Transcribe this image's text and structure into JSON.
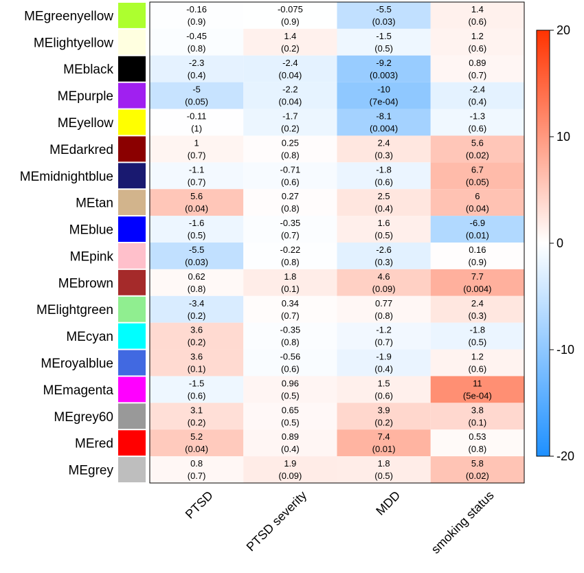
{
  "chart_data": {
    "type": "heatmap",
    "title": "",
    "xlabel": "",
    "ylabel": "",
    "columns": [
      "PTSD",
      "PTSD severity",
      "MDD",
      "smoking status"
    ],
    "rows": [
      {
        "name": "MEgreenyellow",
        "color": "#ADFF2F",
        "values": [
          -0.16,
          -0.075,
          -5.5,
          1.4
        ],
        "labels": [
          "-0.16",
          "-0.075",
          "-5.5",
          "1.4"
        ],
        "pvalues": [
          "(0.9)",
          "(0.9)",
          "(0.03)",
          "(0.6)"
        ]
      },
      {
        "name": "MElightyellow",
        "color": "#FFFFE0",
        "values": [
          -0.45,
          1.4,
          -1.5,
          1.2
        ],
        "labels": [
          "-0.45",
          "1.4",
          "-1.5",
          "1.2"
        ],
        "pvalues": [
          "(0.8)",
          "(0.2)",
          "(0.5)",
          "(0.6)"
        ]
      },
      {
        "name": "MEblack",
        "color": "#000000",
        "values": [
          -2.3,
          -2.4,
          -9.2,
          0.89
        ],
        "labels": [
          "-2.3",
          "-2.4",
          "-9.2",
          "0.89"
        ],
        "pvalues": [
          "(0.4)",
          "(0.04)",
          "(0.003)",
          "(0.7)"
        ]
      },
      {
        "name": "MEpurple",
        "color": "#A020F0",
        "values": [
          -5,
          -2.2,
          -10,
          -2.4
        ],
        "labels": [
          "-5",
          "-2.2",
          "-10",
          "-2.4"
        ],
        "pvalues": [
          "(0.05)",
          "(0.04)",
          "(7e-04)",
          "(0.4)"
        ]
      },
      {
        "name": "MEyellow",
        "color": "#FFFF00",
        "values": [
          -0.11,
          -1.7,
          -8.1,
          -1.3
        ],
        "labels": [
          "-0.11",
          "-1.7",
          "-8.1",
          "-1.3"
        ],
        "pvalues": [
          "(1)",
          "(0.2)",
          "(0.004)",
          "(0.6)"
        ]
      },
      {
        "name": "MEdarkred",
        "color": "#8B0000",
        "values": [
          1,
          0.25,
          2.4,
          5.6
        ],
        "labels": [
          "1",
          "0.25",
          "2.4",
          "5.6"
        ],
        "pvalues": [
          "(0.7)",
          "(0.8)",
          "(0.3)",
          "(0.02)"
        ]
      },
      {
        "name": "MEmidnightblue",
        "color": "#191970",
        "values": [
          -1.1,
          -0.71,
          -1.8,
          6.7
        ],
        "labels": [
          "-1.1",
          "-0.71",
          "-1.8",
          "6.7"
        ],
        "pvalues": [
          "(0.7)",
          "(0.6)",
          "(0.6)",
          "(0.05)"
        ]
      },
      {
        "name": "MEtan",
        "color": "#D2B48C",
        "values": [
          5.6,
          0.27,
          2.5,
          6
        ],
        "labels": [
          "5.6",
          "0.27",
          "2.5",
          "6"
        ],
        "pvalues": [
          "(0.04)",
          "(0.8)",
          "(0.4)",
          "(0.04)"
        ]
      },
      {
        "name": "MEblue",
        "color": "#0000FF",
        "values": [
          -1.6,
          -0.35,
          1.6,
          -6.9
        ],
        "labels": [
          "-1.6",
          "-0.35",
          "1.6",
          "-6.9"
        ],
        "pvalues": [
          "(0.5)",
          "(0.7)",
          "(0.5)",
          "(0.01)"
        ]
      },
      {
        "name": "MEpink",
        "color": "#FFC0CB",
        "values": [
          -5.5,
          -0.22,
          -2.6,
          0.16
        ],
        "labels": [
          "-5.5",
          "-0.22",
          "-2.6",
          "0.16"
        ],
        "pvalues": [
          "(0.03)",
          "(0.8)",
          "(0.3)",
          "(0.9)"
        ]
      },
      {
        "name": "MEbrown",
        "color": "#A52A2A",
        "values": [
          0.62,
          1.8,
          4.6,
          7.7
        ],
        "labels": [
          "0.62",
          "1.8",
          "4.6",
          "7.7"
        ],
        "pvalues": [
          "(0.8)",
          "(0.1)",
          "(0.09)",
          "(0.004)"
        ]
      },
      {
        "name": "MElightgreen",
        "color": "#90EE90",
        "values": [
          -3.4,
          0.34,
          0.77,
          2.4
        ],
        "labels": [
          "-3.4",
          "0.34",
          "0.77",
          "2.4"
        ],
        "pvalues": [
          "(0.2)",
          "(0.7)",
          "(0.8)",
          "(0.3)"
        ]
      },
      {
        "name": "MEcyan",
        "color": "#00FFFF",
        "values": [
          3.6,
          -0.35,
          -1.2,
          -1.8
        ],
        "labels": [
          "3.6",
          "-0.35",
          "-1.2",
          "-1.8"
        ],
        "pvalues": [
          "(0.2)",
          "(0.8)",
          "(0.7)",
          "(0.5)"
        ]
      },
      {
        "name": "MEroyalblue",
        "color": "#4169E1",
        "values": [
          3.6,
          -0.56,
          -1.9,
          1.2
        ],
        "labels": [
          "3.6",
          "-0.56",
          "-1.9",
          "1.2"
        ],
        "pvalues": [
          "(0.1)",
          "(0.6)",
          "(0.4)",
          "(0.6)"
        ]
      },
      {
        "name": "MEmagenta",
        "color": "#FF00FF",
        "values": [
          -1.5,
          0.96,
          1.5,
          11
        ],
        "labels": [
          "-1.5",
          "0.96",
          "1.5",
          "11"
        ],
        "pvalues": [
          "(0.6)",
          "(0.5)",
          "(0.6)",
          "(5e-04)"
        ]
      },
      {
        "name": "MEgrey60",
        "color": "#999999",
        "values": [
          3.1,
          0.65,
          3.9,
          3.8
        ],
        "labels": [
          "3.1",
          "0.65",
          "3.9",
          "3.8"
        ],
        "pvalues": [
          "(0.2)",
          "(0.5)",
          "(0.2)",
          "(0.1)"
        ]
      },
      {
        "name": "MEred",
        "color": "#FF0000",
        "values": [
          5.2,
          0.89,
          7.4,
          0.53
        ],
        "labels": [
          "5.2",
          "0.89",
          "7.4",
          "0.53"
        ],
        "pvalues": [
          "(0.04)",
          "(0.4)",
          "(0.01)",
          "(0.8)"
        ]
      },
      {
        "name": "MEgrey",
        "color": "#BEBEBE",
        "values": [
          0.8,
          1.9,
          1.8,
          5.8
        ],
        "labels": [
          "0.8",
          "1.9",
          "1.8",
          "5.8"
        ],
        "pvalues": [
          "(0.7)",
          "(0.09)",
          "(0.5)",
          "(0.02)"
        ]
      }
    ],
    "colorscale": {
      "min": -20,
      "max": 20,
      "low_color": "#1E90FF",
      "mid_color": "#FFFFFF",
      "high_color": "#FF3300",
      "ticks": [
        20,
        10,
        0,
        -10,
        -20
      ],
      "tick_labels": [
        "20",
        "10",
        "0",
        "-10",
        "-20"
      ]
    },
    "legend": "right"
  }
}
